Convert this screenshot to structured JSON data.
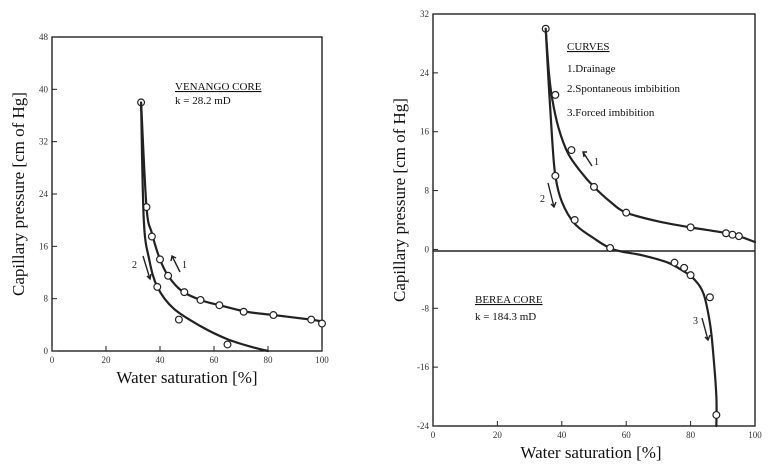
{
  "chart_data": [
    {
      "type": "line",
      "xlabel": "Water saturation [%]",
      "ylabel": "Capillary pressure [cm of Hg]",
      "xlim": [
        0,
        100
      ],
      "ylim": [
        0,
        48
      ],
      "xticks": [
        "0",
        "20",
        "40",
        "60",
        "80",
        "100"
      ],
      "yticks": [
        "0",
        "8",
        "16",
        "24",
        "32",
        "40",
        "48"
      ],
      "annotations": {
        "title_line1": "VENANGO CORE",
        "title_line2": "k = 28.2 mD"
      },
      "series": [
        {
          "name": "1",
          "x": [
            33,
            35,
            37,
            40,
            43,
            48,
            55,
            62,
            72,
            82,
            96,
            100
          ],
          "y": [
            38,
            22,
            18,
            14,
            11.5,
            9.2,
            7.8,
            7.0,
            6.0,
            5.5,
            4.8,
            4.5
          ],
          "markers_x": [
            33,
            35,
            37,
            40,
            43,
            49,
            55,
            62,
            71,
            82,
            96,
            100
          ],
          "markers_y": [
            38,
            22,
            17.5,
            14,
            11.5,
            9,
            7.8,
            7,
            6,
            5.5,
            4.8,
            4.2
          ]
        },
        {
          "name": "2",
          "x": [
            33,
            34,
            36,
            39,
            45,
            55,
            65,
            75,
            80
          ],
          "y": [
            38,
            20,
            14,
            9.8,
            6.5,
            3.8,
            1.8,
            0.5,
            0
          ],
          "markers_x": [
            39,
            47,
            65
          ],
          "markers_y": [
            9.8,
            4.8,
            1.0
          ]
        }
      ]
    },
    {
      "type": "line",
      "xlabel": "Water saturation [%]",
      "ylabel": "Capillary pressure [cm of Hg]",
      "xlim": [
        0,
        100
      ],
      "ylim": [
        -24,
        32
      ],
      "xticks": [
        "0",
        "20",
        "40",
        "60",
        "80",
        "100"
      ],
      "yticks": [
        "32",
        "24",
        "16",
        "8",
        "0",
        "-8",
        "-16",
        "-24"
      ],
      "annotations": {
        "curves_heading": "CURVES",
        "curve1": "1.Drainage",
        "curve2": "2.Spontaneous imbibition",
        "curve3": "3.Forced imbibition",
        "core_line1": "BEREA CORE",
        "core_line2": "k = 184.3 mD"
      },
      "series": [
        {
          "name": "1",
          "x": [
            35,
            36,
            37,
            39,
            42,
            46,
            50,
            55,
            60,
            70,
            80,
            90,
            95,
            100
          ],
          "y": [
            30,
            24,
            20.5,
            16.5,
            13,
            10.5,
            8.5,
            6.5,
            5,
            3.8,
            3,
            2.3,
            1.8,
            1
          ],
          "markers_x": [
            35,
            38,
            43,
            50,
            60,
            80,
            91,
            93,
            95
          ],
          "markers_y": [
            30,
            21,
            13.5,
            8.5,
            5,
            3,
            2.2,
            2,
            1.8
          ]
        },
        {
          "name": "2",
          "x": [
            35,
            36,
            37,
            38,
            40,
            44,
            50,
            56,
            65,
            73,
            78
          ],
          "y": [
            30,
            22,
            15,
            10,
            6.5,
            3.5,
            1.5,
            0,
            -0.8,
            -1.8,
            -3
          ],
          "markers_x": [
            38,
            44,
            55,
            75,
            78
          ],
          "markers_y": [
            10,
            4,
            0.2,
            -1.8,
            -2.5
          ]
        },
        {
          "name": "3",
          "x": [
            78,
            81,
            84,
            86,
            87,
            88,
            88
          ],
          "y": [
            -3,
            -4,
            -6,
            -10,
            -14,
            -20,
            -24
          ],
          "markers_x": [
            80,
            86,
            88
          ],
          "markers_y": [
            -3.5,
            -6.5,
            -22.5
          ]
        }
      ]
    }
  ]
}
